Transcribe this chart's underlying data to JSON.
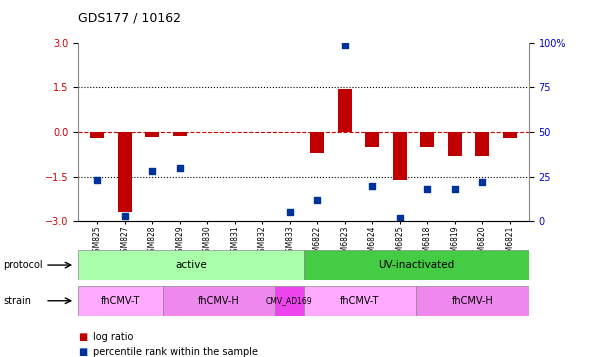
{
  "title": "GDS177 / 10162",
  "samples": [
    "GSM825",
    "GSM827",
    "GSM828",
    "GSM829",
    "GSM830",
    "GSM831",
    "GSM832",
    "GSM833",
    "GSM6822",
    "GSM6823",
    "GSM6824",
    "GSM6825",
    "GSM6818",
    "GSM6819",
    "GSM6820",
    "GSM6821"
  ],
  "log_ratio": [
    -0.2,
    -2.7,
    -0.15,
    -0.12,
    0.0,
    0.0,
    0.0,
    0.0,
    -0.7,
    1.45,
    -0.5,
    -1.62,
    -0.5,
    -0.8,
    -0.8,
    -0.2
  ],
  "percentile": [
    23,
    3,
    28,
    30,
    null,
    null,
    null,
    5,
    12,
    99,
    20,
    2,
    18,
    18,
    22,
    null
  ],
  "ylim": [
    -3,
    3
  ],
  "yticks_left": [
    -3,
    -1.5,
    0,
    1.5,
    3
  ],
  "yticks_right": [
    0,
    25,
    50,
    75,
    100
  ],
  "bar_color": "#c00000",
  "dot_color": "#003399",
  "hline_color": "#cc0000",
  "grid_color": "#000000",
  "protocol_groups": [
    {
      "label": "active",
      "start": 0,
      "end": 8,
      "color": "#aaffaa"
    },
    {
      "label": "UV-inactivated",
      "start": 8,
      "end": 16,
      "color": "#44cc44"
    }
  ],
  "strain_groups": [
    {
      "label": "fhCMV-T",
      "start": 0,
      "end": 3,
      "color": "#ffaaff"
    },
    {
      "label": "fhCMV-H",
      "start": 3,
      "end": 7,
      "color": "#ee88ee"
    },
    {
      "label": "CMV_AD169",
      "start": 7,
      "end": 8,
      "color": "#ee44ee"
    },
    {
      "label": "fhCMV-T",
      "start": 8,
      "end": 12,
      "color": "#ffaaff"
    },
    {
      "label": "fhCMV-H",
      "start": 12,
      "end": 16,
      "color": "#ee88ee"
    }
  ],
  "legend_red": "log ratio",
  "legend_blue": "percentile rank within the sample"
}
